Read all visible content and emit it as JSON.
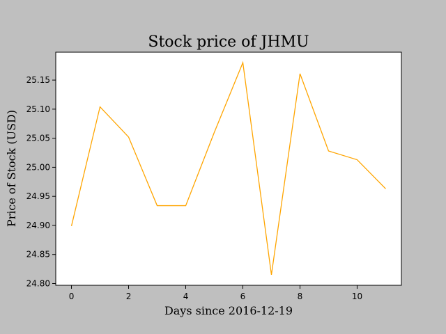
{
  "chart_data": {
    "type": "line",
    "title": "Stock price of JHMU",
    "xlabel": "Days since 2016-12-19",
    "ylabel": "Price of Stock (USD)",
    "x": [
      0,
      1,
      2,
      3,
      4,
      5,
      6,
      7,
      8,
      9,
      10,
      11
    ],
    "series": [
      {
        "values": [
          24.899,
          25.104,
          25.052,
          24.934,
          24.934,
          25.06,
          25.18,
          24.815,
          25.161,
          25.028,
          25.013,
          24.963
        ],
        "color": "#ffa500"
      }
    ],
    "xlim": [
      -0.55,
      11.55
    ],
    "ylim": [
      24.797,
      25.198
    ],
    "xticks": [
      0,
      2,
      4,
      6,
      8,
      10
    ],
    "yticks": [
      24.8,
      24.85,
      24.9,
      24.95,
      25.0,
      25.05,
      25.1,
      25.15
    ],
    "ytick_labels": [
      "24.80",
      "24.85",
      "24.90",
      "24.95",
      "25.00",
      "25.05",
      "25.10",
      "25.15"
    ],
    "grid": false,
    "legend": false,
    "colors": {
      "figure_background": "#bfbfbf",
      "plot_background": "#ffffff",
      "line": "#ffa500"
    }
  }
}
